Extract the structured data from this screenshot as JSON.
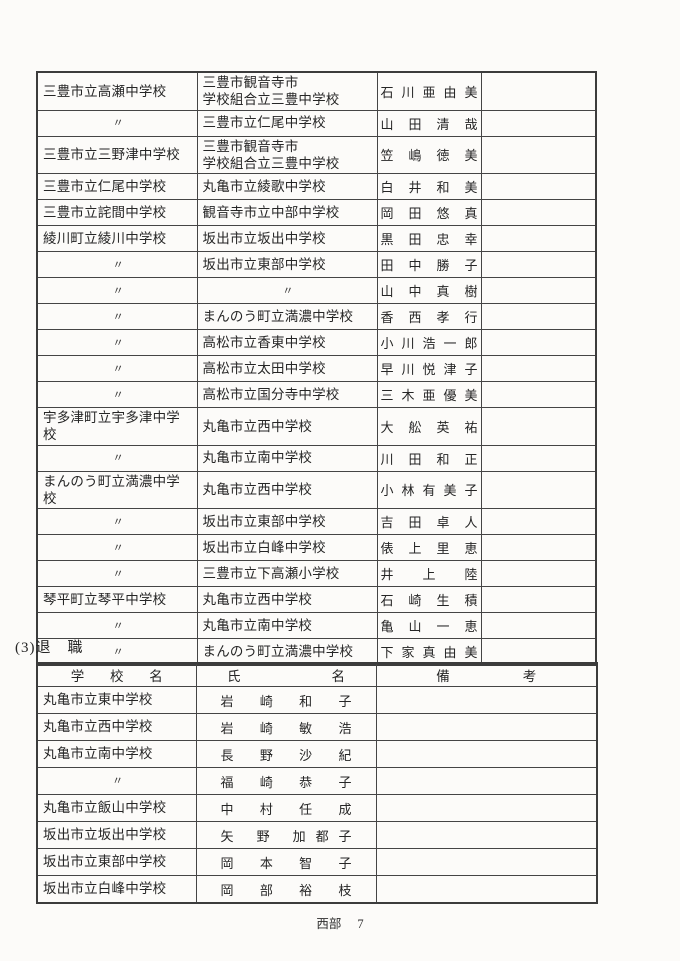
{
  "transfer_table": {
    "rows": [
      {
        "from": "三豊市立高瀬中学校",
        "to": "三豊市観音寺市\n学校組合立三豊中学校",
        "name": "石 川 亜 由 美"
      },
      {
        "from": "〃",
        "to": "三豊市立仁尾中学校",
        "name": "山 田 清 哉"
      },
      {
        "from": "三豊市立三野津中学校",
        "to": "三豊市観音寺市\n学校組合立三豊中学校",
        "name": "笠 嶋 徳 美"
      },
      {
        "from": "三豊市立仁尾中学校",
        "to": "丸亀市立綾歌中学校",
        "name": "白 井 和 美"
      },
      {
        "from": "三豊市立詫間中学校",
        "to": "観音寺市立中部中学校",
        "name": "岡 田 悠 真"
      },
      {
        "from": "綾川町立綾川中学校",
        "to": "坂出市立坂出中学校",
        "name": "黒 田 忠 幸"
      },
      {
        "from": "〃",
        "to": "坂出市立東部中学校",
        "name": "田 中 勝 子"
      },
      {
        "from": "〃",
        "to": "〃",
        "name": "山 中 真 樹"
      },
      {
        "from": "〃",
        "to": "まんのう町立満濃中学校",
        "name": "香 西 孝 行"
      },
      {
        "from": "〃",
        "to": "高松市立香東中学校",
        "name": "小 川 浩 一 郎"
      },
      {
        "from": "〃",
        "to": "高松市立太田中学校",
        "name": "早 川 悦 津 子"
      },
      {
        "from": "〃",
        "to": "高松市立国分寺中学校",
        "name": "三 木 亜 優 美"
      },
      {
        "from": "宇多津町立宇多津中学校",
        "to": "丸亀市立西中学校",
        "name": "大 舩 英 祐"
      },
      {
        "from": "〃",
        "to": "丸亀市立南中学校",
        "name": "川 田 和 正"
      },
      {
        "from": "まんのう町立満濃中学校",
        "to": "丸亀市立西中学校",
        "name": "小 林 有 美 子"
      },
      {
        "from": "〃",
        "to": "坂出市立東部中学校",
        "name": "吉 田 卓 人"
      },
      {
        "from": "〃",
        "to": "坂出市立白峰中学校",
        "name": "俵 上 里 恵"
      },
      {
        "from": "〃",
        "to": "三豊市立下高瀬小学校",
        "name": "井 上 陸"
      },
      {
        "from": "琴平町立琴平中学校",
        "to": "丸亀市立西中学校",
        "name": "石 崎 生 積"
      },
      {
        "from": "〃",
        "to": "丸亀市立南中学校",
        "name": "亀 山 一 恵"
      },
      {
        "from": "〃",
        "to": "まんのう町立満濃中学校",
        "name": "下 家 真 由 美"
      }
    ]
  },
  "retirement_section": {
    "heading": "(3)退　職",
    "table": {
      "headers": {
        "school": "学 校 名",
        "name": "氏 名",
        "remarks": "備 考"
      },
      "rows": [
        {
          "school": "丸亀市立東中学校",
          "name": "岩 崎 和 子"
        },
        {
          "school": "丸亀市立西中学校",
          "name": "岩 崎 敏 浩"
        },
        {
          "school": "丸亀市立南中学校",
          "name": "長 野 沙 紀"
        },
        {
          "school": "〃",
          "name": "福 崎 恭 子"
        },
        {
          "school": "丸亀市立飯山中学校",
          "name": "中 村 任 成"
        },
        {
          "school": "坂出市立坂出中学校",
          "name": "矢 野 加都子"
        },
        {
          "school": "坂出市立東部中学校",
          "name": "岡 本 智 子"
        },
        {
          "school": "坂出市立白峰中学校",
          "name": "岡 部 裕 枝"
        }
      ]
    }
  },
  "footer": {
    "region": "西部",
    "page_no": "7"
  }
}
